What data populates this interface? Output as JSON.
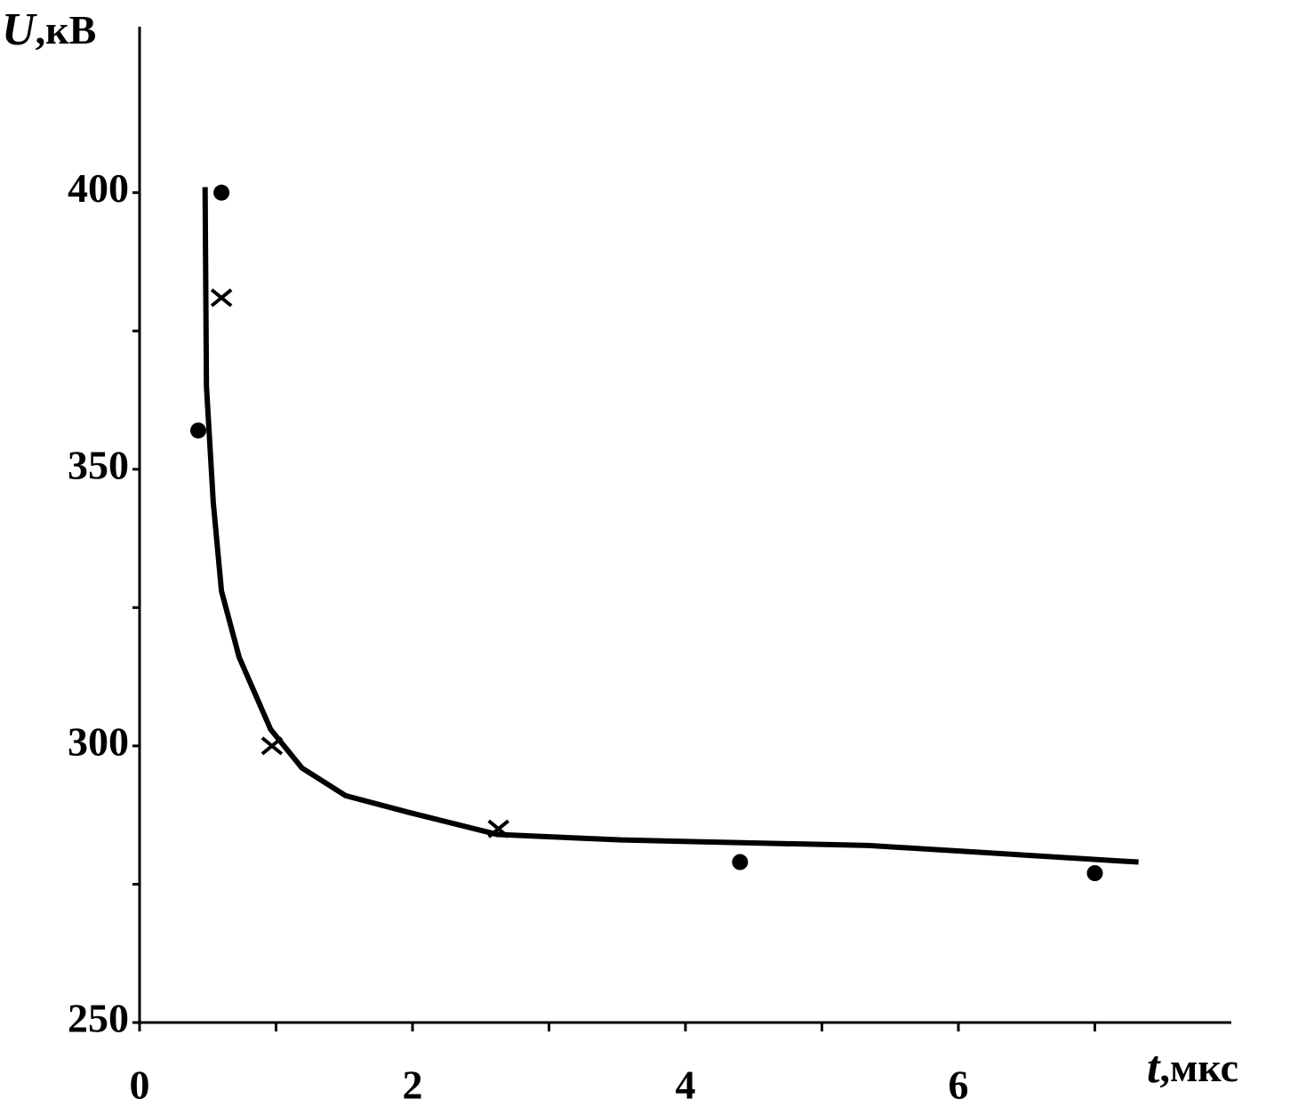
{
  "chart_data": {
    "type": "scatter",
    "ylabel_symbol": "U",
    "ylabel_unit": ",кВ",
    "xlabel_symbol": "t",
    "xlabel_unit": ",мкс",
    "xlim": [
      0,
      8
    ],
    "ylim": [
      250,
      430
    ],
    "xticks": [
      0,
      2,
      4,
      6
    ],
    "xminor_ticks": [
      1,
      3,
      5,
      7
    ],
    "yticks": [
      250,
      300,
      350,
      400
    ],
    "yminor_ticks": [
      275,
      325,
      375
    ],
    "color": "#000000",
    "series": [
      {
        "marker": "dot",
        "x": [
          0.43,
          0.6,
          4.4,
          7.0
        ],
        "values": [
          357,
          400,
          279,
          277
        ]
      },
      {
        "marker": "cross",
        "x": [
          0.6,
          0.97,
          2.63
        ],
        "values": [
          381,
          300,
          285
        ]
      }
    ],
    "curve": {
      "x": [
        0.48,
        0.49,
        0.54,
        0.6,
        0.73,
        0.96,
        1.19,
        1.51,
        1.97,
        2.62,
        3.53,
        5.34,
        7.32
      ],
      "values": [
        401,
        365,
        344,
        328,
        316,
        303,
        296,
        291,
        288,
        284,
        283,
        282,
        279
      ]
    }
  }
}
